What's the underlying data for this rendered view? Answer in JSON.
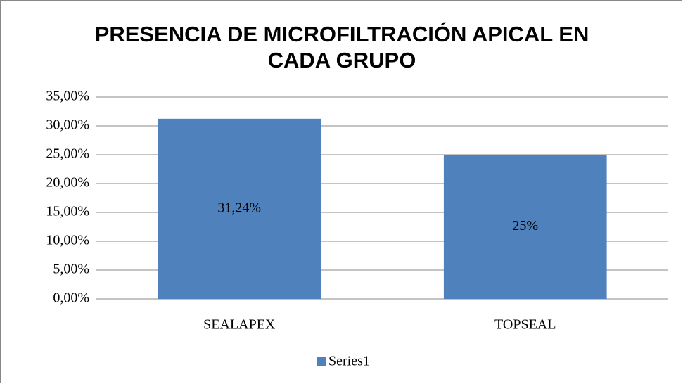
{
  "chart_data": {
    "type": "bar",
    "title": "PRESENCIA DE MICROFILTRACIÓN APICAL EN CADA GRUPO",
    "categories": [
      "SEALAPEX",
      "TOPSEAL"
    ],
    "series": [
      {
        "name": "Series1",
        "color": "#4f81bd",
        "values": [
          31.24,
          25
        ],
        "value_labels": [
          "31,24%",
          "25%"
        ]
      }
    ],
    "ylim": [
      0,
      35
    ],
    "yticks": [
      {
        "value": 0,
        "label": "0,00%"
      },
      {
        "value": 5,
        "label": "5,00%"
      },
      {
        "value": 10,
        "label": "10,00%"
      },
      {
        "value": 15,
        "label": "15,00%"
      },
      {
        "value": 20,
        "label": "20,00%"
      },
      {
        "value": 25,
        "label": "25,00%"
      },
      {
        "value": 30,
        "label": "30,00%"
      },
      {
        "value": 35,
        "label": "35,00%"
      }
    ],
    "grid": true,
    "legend": "bottom"
  }
}
